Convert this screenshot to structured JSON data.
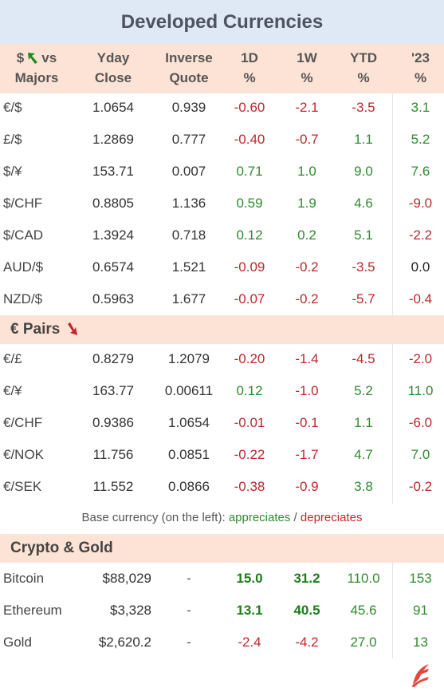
{
  "title": "Developed Currencies",
  "headers": {
    "col1_prefix": "$",
    "col1_suffix": "vs",
    "col1_line2": "Majors",
    "yday_line1": "Yday",
    "yday_line2": "Close",
    "inv_line1": "Inverse",
    "inv_line2": "Quote",
    "d1_line1": "1D",
    "d1_line2": "%",
    "w1_line1": "1W",
    "w1_line2": "%",
    "ytd_line1": "YTD",
    "ytd_line2": "%",
    "y23_line1": "'23",
    "y23_line2": "%"
  },
  "majors": [
    {
      "pair": "€/$",
      "close": "1.0654",
      "inverse": "0.939",
      "d1": "-0.60",
      "w1": "-2.1",
      "ytd": "-3.5",
      "y23": "3.1"
    },
    {
      "pair": "£/$",
      "close": "1.2869",
      "inverse": "0.777",
      "d1": "-0.40",
      "w1": "-0.7",
      "ytd": "1.1",
      "y23": "5.2"
    },
    {
      "pair": "$/¥",
      "close": "153.71",
      "inverse": "0.007",
      "d1": "0.71",
      "w1": "1.0",
      "ytd": "9.0",
      "y23": "7.6"
    },
    {
      "pair": "$/CHF",
      "close": "0.8805",
      "inverse": "1.136",
      "d1": "0.59",
      "w1": "1.9",
      "ytd": "4.6",
      "y23": "-9.0"
    },
    {
      "pair": "$/CAD",
      "close": "1.3924",
      "inverse": "0.718",
      "d1": "0.12",
      "w1": "0.2",
      "ytd": "5.1",
      "y23": "-2.2"
    },
    {
      "pair": "AUD/$",
      "close": "0.6574",
      "inverse": "1.521",
      "d1": "-0.09",
      "w1": "-0.2",
      "ytd": "-3.5",
      "y23": "0.0"
    },
    {
      "pair": "NZD/$",
      "close": "0.5963",
      "inverse": "1.677",
      "d1": "-0.07",
      "w1": "-0.2",
      "ytd": "-5.7",
      "y23": "-0.4"
    }
  ],
  "euro_section_title": "€ Pairs",
  "euro_pairs": [
    {
      "pair": "€/£",
      "close": "0.8279",
      "inverse": "1.2079",
      "d1": "-0.20",
      "w1": "-1.4",
      "ytd": "-4.5",
      "y23": "-2.0"
    },
    {
      "pair": "€/¥",
      "close": "163.77",
      "inverse": "0.00611",
      "d1": "0.12",
      "w1": "-1.0",
      "ytd": "5.2",
      "y23": "11.0"
    },
    {
      "pair": "€/CHF",
      "close": "0.9386",
      "inverse": "1.0654",
      "d1": "-0.01",
      "w1": "-0.1",
      "ytd": "1.1",
      "y23": "-6.0"
    },
    {
      "pair": "€/NOK",
      "close": "11.756",
      "inverse": "0.0851",
      "d1": "-0.22",
      "w1": "-1.7",
      "ytd": "4.7",
      "y23": "7.0"
    },
    {
      "pair": "€/SEK",
      "close": "11.552",
      "inverse": "0.0866",
      "d1": "-0.38",
      "w1": "-0.9",
      "ytd": "3.8",
      "y23": "-0.2"
    }
  ],
  "legend": {
    "prefix": "Base currency (on the left):",
    "appreciates": "appreciates",
    "separator": "/",
    "depreciates": "depreciates"
  },
  "crypto_section_title": "Crypto & Gold",
  "crypto": [
    {
      "pair": "Bitcoin",
      "close": "$88,029",
      "inverse": "-",
      "d1": "15.0",
      "w1": "31.2",
      "ytd": "110.0",
      "y23": "153",
      "bold": true
    },
    {
      "pair": "Ethereum",
      "close": "$3,328",
      "inverse": "-",
      "d1": "13.1",
      "w1": "40.5",
      "ytd": "45.6",
      "y23": "91",
      "bold": true
    },
    {
      "pair": "Gold",
      "close": "$2,620.2",
      "inverse": "-",
      "d1": "-2.4",
      "w1": "-4.2",
      "ytd": "27.0",
      "y23": "13",
      "bold": false
    }
  ],
  "colors": {
    "title_bg": "#dfe9f5",
    "band_bg": "#fde3d5",
    "positive": "#2e8b2e",
    "negative": "#c0262b",
    "arrow_up": "#1f8a1f",
    "arrow_down": "#c0262b",
    "logo": "#e8453c"
  },
  "icons": {
    "majors_arrow": "green-up-arrow-icon",
    "euro_arrow": "red-down-arrow-icon",
    "logo": "brand-logo-icon"
  }
}
